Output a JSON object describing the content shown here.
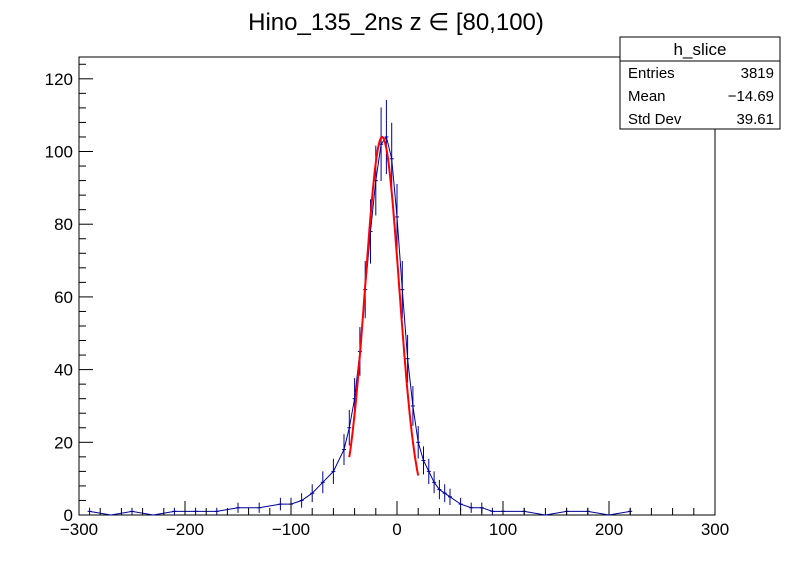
{
  "title": "Hino_135_2ns z  ∈ [80,100)",
  "stats": {
    "name": "h_slice",
    "rows": [
      {
        "label": "Entries",
        "value": "3819"
      },
      {
        "label": "Mean",
        "value": "−14.69"
      },
      {
        "label": "Std Dev",
        "value": "39.61"
      }
    ]
  },
  "chart_data": {
    "type": "histogram",
    "title": "Hino_135_2ns z  ∈ [80,100)",
    "xlabel": "",
    "ylabel": "",
    "xlim": [
      -300,
      300
    ],
    "ylim": [
      0,
      126
    ],
    "x_ticks": [
      -300,
      -200,
      -100,
      0,
      100,
      200,
      300
    ],
    "x_tick_labels": [
      "−300",
      "−200",
      "−100",
      "0",
      "100",
      "200",
      "300"
    ],
    "y_ticks": [
      0,
      20,
      40,
      60,
      80,
      100,
      120
    ],
    "y_tick_labels": [
      "0",
      "20",
      "40",
      "60",
      "80",
      "100",
      "120"
    ],
    "histogram_color": "#000099",
    "fit_color": "#ff0000",
    "grid": false,
    "legend": "stats box top-right",
    "series": [
      {
        "x": [
          -290,
          -270,
          -250,
          -230,
          -210,
          -190,
          -170,
          -150,
          -130,
          -110,
          -100,
          -90,
          -80,
          -70,
          -60,
          -50,
          -45,
          -40,
          -35,
          -30,
          -25,
          -20,
          -15,
          -10,
          -5,
          0,
          5,
          10,
          15,
          20,
          25,
          30,
          35,
          40,
          45,
          50,
          60,
          70,
          80,
          90,
          100,
          120,
          140,
          160,
          180,
          200,
          220
        ],
        "y": [
          1,
          0,
          1,
          0,
          1,
          1,
          1,
          2,
          2,
          3,
          3,
          4,
          6,
          9,
          12,
          18,
          24,
          32,
          45,
          62,
          78,
          92,
          102,
          104,
          98,
          82,
          62,
          43,
          30,
          20,
          15,
          12,
          9,
          7,
          6,
          5,
          3,
          2,
          2,
          1,
          1,
          1,
          0,
          1,
          1,
          0,
          1
        ]
      }
    ],
    "fit": {
      "function": "gaus",
      "constant": 104,
      "mean": -14,
      "sigma": 16,
      "range": [
        -45,
        20
      ]
    }
  }
}
